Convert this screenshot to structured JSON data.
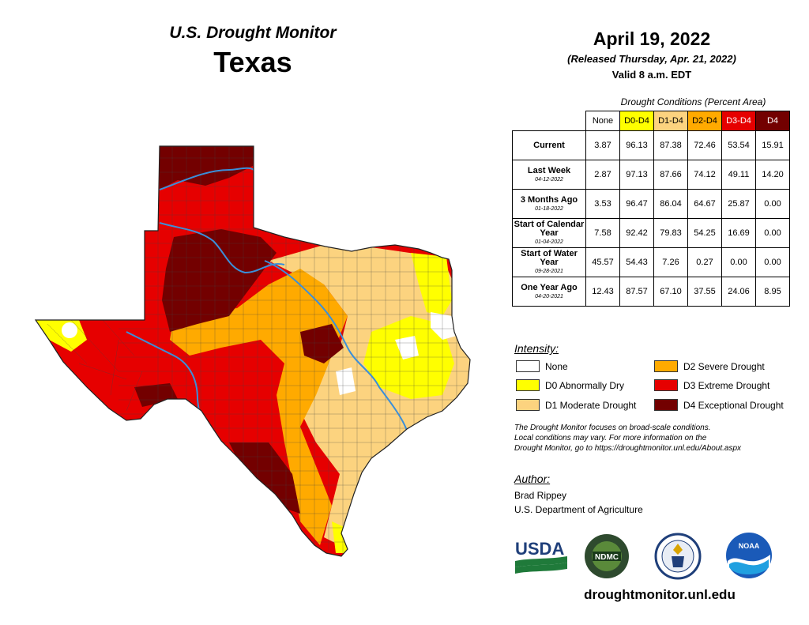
{
  "header": {
    "monitor_title": "U.S. Drought Monitor",
    "state": "Texas",
    "map_date": "April 19, 2022",
    "released": "(Released Thursday, Apr. 21, 2022)",
    "valid": "Valid 8 a.m. EDT"
  },
  "table": {
    "caption": "Drought Conditions (Percent Area)",
    "columns": [
      {
        "label": "None",
        "bg": "#ffffff",
        "fg": "#000000"
      },
      {
        "label": "D0-D4",
        "bg": "#ffff00",
        "fg": "#000000"
      },
      {
        "label": "D1-D4",
        "bg": "#fcd37f",
        "fg": "#000000"
      },
      {
        "label": "D2-D4",
        "bg": "#ffaa00",
        "fg": "#000000"
      },
      {
        "label": "D3-D4",
        "bg": "#e60000",
        "fg": "#ffffff"
      },
      {
        "label": "D4",
        "bg": "#730000",
        "fg": "#ffffff"
      }
    ],
    "rows": [
      {
        "label": "Current",
        "sub": "",
        "values": [
          "3.87",
          "96.13",
          "87.38",
          "72.46",
          "53.54",
          "15.91"
        ]
      },
      {
        "label": "Last Week",
        "sub": "04-12-2022",
        "values": [
          "2.87",
          "97.13",
          "87.66",
          "74.12",
          "49.11",
          "14.20"
        ]
      },
      {
        "label": "3 Months Ago",
        "sub": "01-18-2022",
        "values": [
          "3.53",
          "96.47",
          "86.04",
          "64.67",
          "25.87",
          "0.00"
        ]
      },
      {
        "label": "Start of Calendar Year",
        "sub": "01-04-2022",
        "values": [
          "7.58",
          "92.42",
          "79.83",
          "54.25",
          "16.69",
          "0.00"
        ]
      },
      {
        "label": "Start of Water Year",
        "sub": "09-28-2021",
        "values": [
          "45.57",
          "54.43",
          "7.26",
          "0.27",
          "0.00",
          "0.00"
        ]
      },
      {
        "label": "One Year Ago",
        "sub": "04-20-2021",
        "values": [
          "12.43",
          "87.57",
          "67.10",
          "37.55",
          "24.06",
          "8.95"
        ]
      }
    ]
  },
  "legend": {
    "heading": "Intensity:",
    "items": [
      {
        "label": "None",
        "color": "#ffffff"
      },
      {
        "label": "D0 Abnormally Dry",
        "color": "#ffff00"
      },
      {
        "label": "D1 Moderate Drought",
        "color": "#fcd37f"
      },
      {
        "label": "D2 Severe Drought",
        "color": "#ffaa00"
      },
      {
        "label": "D3 Extreme Drought",
        "color": "#e60000"
      },
      {
        "label": "D4 Exceptional Drought",
        "color": "#730000"
      }
    ]
  },
  "disclaimer": {
    "line1": "The Drought Monitor focuses on broad-scale conditions.",
    "line2": "Local conditions may vary. For more information on the",
    "line3": "Drought Monitor, go to https://droughtmonitor.unl.edu/About.aspx"
  },
  "author": {
    "heading": "Author:",
    "name": "Brad Rippey",
    "org": "U.S. Department of Agriculture"
  },
  "logos": {
    "usda": "USDA",
    "ndmc": "NDMC",
    "noaa": "NOAA"
  },
  "website": "droughtmonitor.unl.edu"
}
